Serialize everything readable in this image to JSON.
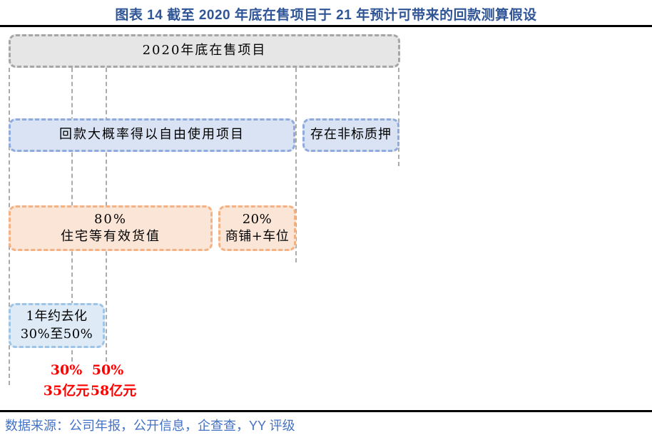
{
  "header": {
    "title": "图表 14 截至 2020 年底在售项目于 21 年预计可带来的回款测算假设"
  },
  "diagram": {
    "nodes": {
      "root": {
        "label": "2020年底在售项目"
      },
      "free_use": {
        "label": "回款大概率得以自由使用项目"
      },
      "pledged": {
        "label": "存在非标质押"
      },
      "residential": {
        "pct": "80%",
        "label": "住宅等有效货值"
      },
      "commercial": {
        "pct": "20%",
        "label": "商铺+车位"
      },
      "sellthrough": {
        "line1": "1年约去化",
        "line2": "30%至50%"
      }
    },
    "results": {
      "low_pct": "30%",
      "high_pct": "50%",
      "low_amount": "35亿元",
      "high_amount": "58亿元"
    },
    "colors": {
      "root_fill": "#E7E6E6",
      "root_border": "#A6A6A6",
      "blue_fill": "#DAE3F3",
      "blue_border": "#8FAADC",
      "orange_fill": "#FBE5D6",
      "orange_border": "#F4B183",
      "lightblue_fill": "#DEEBF7",
      "lightblue_border": "#9DC3E6",
      "result_red": "#FF0000",
      "title_blue": "#2F5597",
      "source_blue": "#4472C4"
    }
  },
  "footer": {
    "source": "数据来源：公司年报，公开信息，企查查，YY 评级"
  }
}
